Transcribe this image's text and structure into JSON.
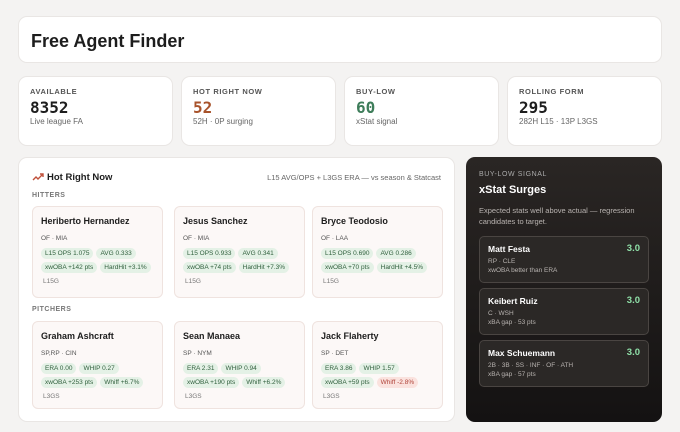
{
  "header": {
    "title": "Free Agent Finder"
  },
  "stats": [
    {
      "label": "AVAILABLE",
      "value": 8352,
      "sub": "Live league FA",
      "color": "#1d1d1d"
    },
    {
      "label": "HOT RIGHT NOW",
      "value": 52,
      "sub": "52H · 0P surging",
      "color": "#a8532b"
    },
    {
      "label": "BUY-LOW",
      "value": 60,
      "sub": "xStat signal",
      "color": "#3e7d5a"
    },
    {
      "label": "ROLLING FORM",
      "value": 295,
      "sub": "282H L15 · 13P L3GS",
      "color": "#1d1d1d"
    }
  ],
  "hot": {
    "title": "Hot Right Now",
    "note": "L15 AVG/OPS + L3GS ERA — vs season & Statcast",
    "sections": [
      {
        "label": "HITTERS",
        "players": [
          {
            "name": "Heriberto Hernandez",
            "meta": "OF · MIA",
            "chips": [
              {
                "text": "L15 OPS 1.075",
                "tone": "green"
              },
              {
                "text": "AVG 0.333",
                "tone": "green"
              },
              {
                "text": "xwOBA +142 pts",
                "tone": "green"
              },
              {
                "text": "HardHit +3.1%",
                "tone": "green"
              }
            ],
            "tag": "L15G"
          },
          {
            "name": "Jesus Sanchez",
            "meta": "OF · MIA",
            "chips": [
              {
                "text": "L15 OPS 0.933",
                "tone": "green"
              },
              {
                "text": "AVG 0.341",
                "tone": "green"
              },
              {
                "text": "xwOBA +74 pts",
                "tone": "green"
              },
              {
                "text": "HardHit +7.3%",
                "tone": "green"
              }
            ],
            "tag": "L15G"
          },
          {
            "name": "Bryce Teodosio",
            "meta": "OF · LAA",
            "chips": [
              {
                "text": "L15 OPS 0.690",
                "tone": "green"
              },
              {
                "text": "AVG 0.286",
                "tone": "green"
              },
              {
                "text": "xwOBA +70 pts",
                "tone": "green"
              },
              {
                "text": "HardHit +4.5%",
                "tone": "green"
              }
            ],
            "tag": "L15G"
          }
        ]
      },
      {
        "label": "PITCHERS",
        "players": [
          {
            "name": "Graham Ashcraft",
            "meta": "SP,RP · CIN",
            "chips": [
              {
                "text": "ERA 0.00",
                "tone": "green"
              },
              {
                "text": "WHIP 0.27",
                "tone": "green"
              },
              {
                "text": "xwOBA +253 pts",
                "tone": "green"
              },
              {
                "text": "Whiff +6.7%",
                "tone": "green"
              }
            ],
            "tag": "L3GS"
          },
          {
            "name": "Sean Manaea",
            "meta": "SP · NYM",
            "chips": [
              {
                "text": "ERA 2.31",
                "tone": "green"
              },
              {
                "text": "WHIP 0.94",
                "tone": "green"
              },
              {
                "text": "xwOBA +190 pts",
                "tone": "green"
              },
              {
                "text": "Whiff +6.2%",
                "tone": "green"
              }
            ],
            "tag": "L3GS"
          },
          {
            "name": "Jack Flaherty",
            "meta": "SP · DET",
            "chips": [
              {
                "text": "ERA 3.86",
                "tone": "green"
              },
              {
                "text": "WHIP 1.57",
                "tone": "green"
              },
              {
                "text": "xwOBA +59 pts",
                "tone": "green"
              },
              {
                "text": "Whiff -2.8%",
                "tone": "red"
              }
            ],
            "tag": "L3GS"
          }
        ]
      }
    ]
  },
  "buylow": {
    "kicker": "BUY-LOW SIGNAL",
    "title": "xStat Surges",
    "desc": "Expected stats well above actual — regression candidates to target.",
    "items": [
      {
        "name": "Matt Festa",
        "score": "3.0",
        "meta": "RP · CLE",
        "note": "xwOBA better than ERA"
      },
      {
        "name": "Keibert Ruiz",
        "score": "3.0",
        "meta": "C · WSH",
        "note": "xBA gap · 53 pts"
      },
      {
        "name": "Max Schuemann",
        "score": "3.0",
        "meta": "2B · 3B · SS · INF · OF · ATH",
        "note": "xBA gap · 57 pts"
      }
    ]
  }
}
